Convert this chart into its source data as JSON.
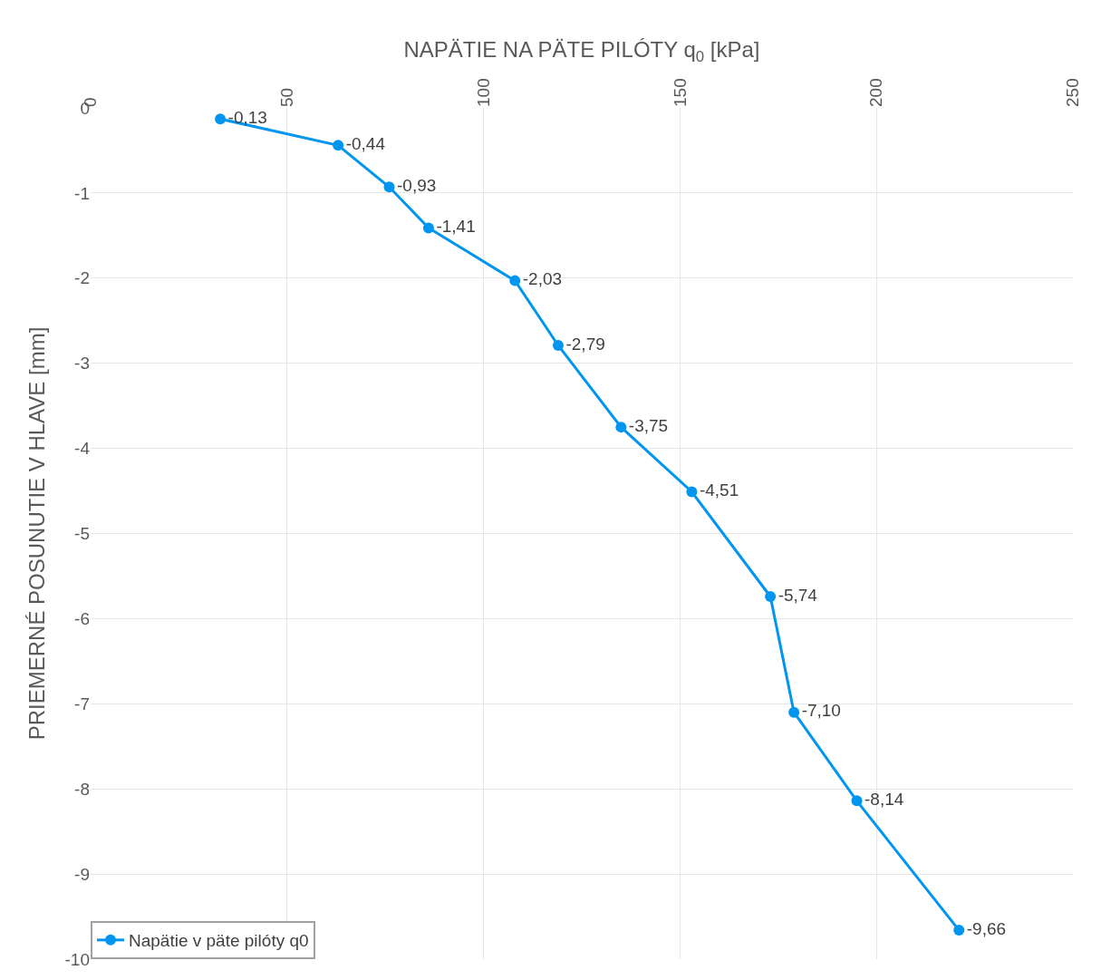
{
  "chart_data": {
    "type": "line",
    "xlabel": "NAPÄTIE NA PÄTE PILÓTY q$_{0}$ [kPa]",
    "ylabel": "PRIEMERNÉ POSUNUTIE V HLAVE [mm]",
    "x": [
      33,
      63,
      76,
      86,
      108,
      119,
      135,
      153,
      173,
      179,
      195,
      221
    ],
    "series": [
      {
        "name": "Napätie v päte pilóty q0",
        "color": "#0096f0",
        "values": [
          -0.13,
          -0.44,
          -0.93,
          -1.41,
          -2.03,
          -2.79,
          -3.75,
          -4.51,
          -5.74,
          -7.1,
          -8.14,
          -9.66
        ],
        "value_labels": [
          "-0,13",
          "-0,44",
          "-0,93",
          "-1,41",
          "-2,03",
          "-2,79",
          "-3,75",
          "-4,51",
          "-5,74",
          "-7,10",
          "-8,14",
          "-9,66"
        ]
      }
    ],
    "xlim": [
      0,
      250
    ],
    "xticks": [
      0,
      50,
      100,
      150,
      200,
      250
    ],
    "ylim": [
      -10,
      0
    ],
    "yticks": [
      0,
      -1,
      -2,
      -3,
      -4,
      -5,
      -6,
      -7,
      -8,
      -9,
      -10
    ],
    "grid": true,
    "legend": "bottom left",
    "marker": "circle",
    "line_style": "solid"
  }
}
